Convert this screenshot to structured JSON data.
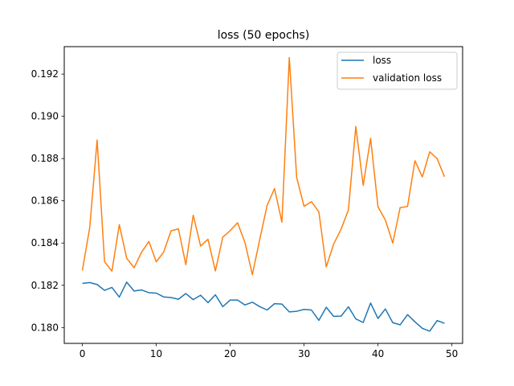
{
  "chart_data": {
    "type": "line",
    "title": "loss (50 epochs)",
    "xlabel": "",
    "ylabel": "",
    "xlim": [
      -2.45,
      51.45
    ],
    "ylim": [
      0.17925,
      0.1933
    ],
    "xticks": [
      0,
      10,
      20,
      30,
      40,
      50
    ],
    "yticks": [
      0.18,
      0.182,
      0.184,
      0.186,
      0.188,
      0.19,
      0.192
    ],
    "ytick_labels": [
      "0.180",
      "0.182",
      "0.184",
      "0.186",
      "0.188",
      "0.190",
      "0.192"
    ],
    "grid": false,
    "legend_position": "top-right",
    "x": [
      0,
      1,
      2,
      3,
      4,
      5,
      6,
      7,
      8,
      9,
      10,
      11,
      12,
      13,
      14,
      15,
      16,
      17,
      18,
      19,
      20,
      21,
      22,
      23,
      24,
      25,
      26,
      27,
      28,
      29,
      30,
      31,
      32,
      33,
      34,
      35,
      36,
      37,
      38,
      39,
      40,
      41,
      42,
      43,
      44,
      45,
      46,
      47,
      48,
      49
    ],
    "series": [
      {
        "name": "loss",
        "color": "#1f77b4",
        "values": [
          0.18209,
          0.18213,
          0.18204,
          0.18176,
          0.1819,
          0.18144,
          0.18215,
          0.18173,
          0.18178,
          0.18165,
          0.18163,
          0.18145,
          0.18142,
          0.18134,
          0.18161,
          0.18132,
          0.18153,
          0.18118,
          0.18155,
          0.18099,
          0.1813,
          0.1813,
          0.18107,
          0.1812,
          0.18099,
          0.18083,
          0.18113,
          0.18111,
          0.18074,
          0.18077,
          0.18086,
          0.18083,
          0.18034,
          0.18096,
          0.18053,
          0.18054,
          0.18098,
          0.18041,
          0.18024,
          0.18116,
          0.18043,
          0.18088,
          0.18023,
          0.18013,
          0.18061,
          0.18027,
          0.17996,
          0.17983,
          0.18033,
          0.1802
        ]
      },
      {
        "name": "validation loss",
        "color": "#ff7f0e",
        "values": [
          0.1827,
          0.18474,
          0.18888,
          0.18312,
          0.18267,
          0.18487,
          0.18328,
          0.18283,
          0.18356,
          0.18408,
          0.18311,
          0.18357,
          0.18458,
          0.18467,
          0.18298,
          0.18532,
          0.18386,
          0.18418,
          0.18268,
          0.18428,
          0.18459,
          0.18496,
          0.18403,
          0.1825,
          0.18417,
          0.18578,
          0.18658,
          0.18499,
          0.19278,
          0.1871,
          0.18574,
          0.18596,
          0.18548,
          0.18287,
          0.18395,
          0.18465,
          0.18557,
          0.18952,
          0.18673,
          0.18896,
          0.18572,
          0.18509,
          0.184,
          0.18568,
          0.18573,
          0.1879,
          0.18713,
          0.18832,
          0.188,
          0.18714
        ]
      }
    ]
  }
}
